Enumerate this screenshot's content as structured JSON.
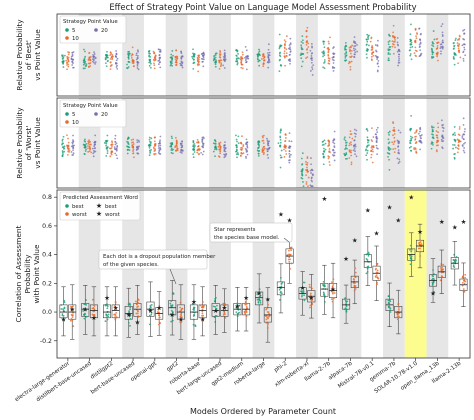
{
  "colors": {
    "best": "#1b9e77",
    "worst": "#e66a2c",
    "pv5": "#1b9e77",
    "pv10": "#e66a2c",
    "pv20": "#7570b3",
    "shade": "#e6e6e6",
    "highlight": "#fdfd8f",
    "star": "#c000c0",
    "base_star": "#7f7f7f"
  },
  "chart_data": [
    {
      "type": "scatter",
      "title": "Effect of Strategy Point Value on Language Model Assessment Probability",
      "ylabel": "Relative Probability\nof 'Best'\nvs Point Value",
      "legend": {
        "title": "Strategy Point Value",
        "entries": [
          "5",
          "10",
          "20"
        ],
        "placement": "top-left"
      },
      "categories": [
        "electra-large-generator",
        "distilbert-base-uncased",
        "distilgpt2",
        "bert-base-uncased",
        "openai-gpt",
        "gpt2",
        "roberta-base",
        "bert-large-uncased",
        "gpt2-medium",
        "roberta-large",
        "phi-2",
        "xlm-roberta-xl",
        "llama-2-7b",
        "alpaca-7b",
        "Mistral-7B-v0.1",
        "gemma-7b",
        "SOLAR-10.7B-v1.0",
        "open_llama_13b",
        "llama-2-13b"
      ],
      "series": [
        {
          "name": "5",
          "values": [
            0.45,
            0.44,
            0.47,
            0.46,
            0.46,
            0.46,
            0.47,
            0.45,
            0.46,
            0.48,
            0.52,
            0.55,
            0.52,
            0.55,
            0.63,
            0.58,
            0.65,
            0.57,
            0.56
          ]
        },
        {
          "name": "10",
          "values": [
            0.45,
            0.46,
            0.44,
            0.47,
            0.45,
            0.46,
            0.44,
            0.46,
            0.45,
            0.47,
            0.56,
            0.68,
            0.55,
            0.52,
            0.58,
            0.72,
            0.62,
            0.6,
            0.58
          ]
        },
        {
          "name": "20",
          "values": [
            0.46,
            0.46,
            0.46,
            0.44,
            0.46,
            0.45,
            0.46,
            0.46,
            0.47,
            0.48,
            0.5,
            0.46,
            0.48,
            0.56,
            0.52,
            0.54,
            0.62,
            0.66,
            0.64
          ]
        }
      ],
      "ylim": [
        0,
        1
      ],
      "grid": false
    },
    {
      "type": "scatter",
      "ylabel": "Relative Probability\nof 'Worst'\nvs Point Value",
      "legend": {
        "title": "Strategy Point Value",
        "entries": [
          "5",
          "10",
          "20"
        ],
        "placement": "top-left"
      },
      "categories": [
        "electra-large-generator",
        "distilbert-base-uncased",
        "distilgpt2",
        "bert-base-uncased",
        "openai-gpt",
        "gpt2",
        "roberta-base",
        "bert-large-uncased",
        "gpt2-medium",
        "roberta-large",
        "phi-2",
        "xlm-roberta-xl",
        "llama-2-7b",
        "alpaca-7b",
        "Mistral-7B-v0.1",
        "gemma-7b",
        "SOLAR-10.7B-v1.0",
        "open_llama_13b",
        "llama-2-13b"
      ],
      "series": [
        {
          "name": "5",
          "values": [
            0.46,
            0.45,
            0.46,
            0.47,
            0.46,
            0.45,
            0.46,
            0.46,
            0.45,
            0.46,
            0.5,
            0.18,
            0.46,
            0.44,
            0.48,
            0.4,
            0.56,
            0.54,
            0.52
          ]
        },
        {
          "name": "10",
          "values": [
            0.46,
            0.47,
            0.44,
            0.46,
            0.46,
            0.47,
            0.45,
            0.45,
            0.46,
            0.46,
            0.48,
            0.16,
            0.44,
            0.46,
            0.46,
            0.58,
            0.52,
            0.55,
            0.5
          ]
        },
        {
          "name": "20",
          "values": [
            0.45,
            0.46,
            0.46,
            0.45,
            0.46,
            0.46,
            0.47,
            0.46,
            0.46,
            0.47,
            0.46,
            0.15,
            0.44,
            0.5,
            0.54,
            0.44,
            0.58,
            0.58,
            0.55
          ]
        }
      ],
      "ylim": [
        0,
        1
      ],
      "grid": false
    },
    {
      "type": "box",
      "ylabel": "Correlation of Assessment\nProbability\nwith Point Value",
      "xlabel": "Models Ordered by Parameter Count",
      "ylim": [
        -0.32,
        0.85
      ],
      "yticks": [
        "-0.2",
        "0.0",
        "0.2",
        "0.4",
        "0.6",
        "0.8"
      ],
      "legend": {
        "title": "Predicted Assessment Word",
        "entries": [
          "best",
          "worst",
          "best",
          "worst"
        ],
        "placement": "top-left"
      },
      "annotations": [
        "Star represents the species base model.",
        "Each dot is a dropout population member of the given species."
      ],
      "categories": [
        "electra-large-generator",
        "distilbert-base-uncased",
        "distilgpt2",
        "bert-base-uncased",
        "openai-gpt",
        "gpt2",
        "roberta-base",
        "bert-large-uncased",
        "gpt2-medium",
        "roberta-large",
        "phi-2",
        "xlm-roberta-xl",
        "llama-2-7b",
        "alpaca-7b",
        "Mistral-7B-v0.1",
        "gemma-7b",
        "SOLAR-10.7B-v1.0",
        "open_llama_13b",
        "llama-2-13b"
      ],
      "highlight_category": "SOLAR-10.7B-v1.0",
      "series": [
        {
          "name": "best",
          "median": [
            0.0,
            0.02,
            0.0,
            -0.01,
            0.02,
            0.03,
            0.0,
            0.01,
            0.02,
            0.1,
            0.17,
            0.13,
            0.16,
            0.05,
            0.35,
            0.05,
            0.4,
            0.22,
            0.34
          ],
          "q1": [
            -0.04,
            -0.03,
            -0.04,
            -0.05,
            -0.03,
            -0.02,
            -0.05,
            -0.03,
            -0.02,
            0.05,
            0.12,
            0.09,
            0.11,
            0.02,
            0.31,
            0.01,
            0.36,
            0.18,
            0.3
          ],
          "q3": [
            0.05,
            0.06,
            0.05,
            0.04,
            0.07,
            0.08,
            0.05,
            0.06,
            0.06,
            0.14,
            0.21,
            0.17,
            0.2,
            0.09,
            0.4,
            0.09,
            0.44,
            0.26,
            0.38
          ],
          "star": [
            -0.05,
            0.02,
            0.1,
            -0.02,
            0.01,
            -0.02,
            0.07,
            0.01,
            0.04,
            0.13,
            0.68,
            0.17,
            0.79,
            0.37,
            0.71,
            0.73,
            0.8,
            0.13,
            0.59
          ]
        },
        {
          "name": "worst",
          "median": [
            0.0,
            0.01,
            0.01,
            0.02,
            -0.01,
            0.0,
            0.01,
            0.01,
            0.02,
            -0.02,
            0.39,
            0.11,
            0.15,
            0.21,
            0.27,
            0.0,
            0.46,
            0.28,
            0.19
          ],
          "q1": [
            -0.05,
            -0.04,
            -0.04,
            -0.03,
            -0.05,
            -0.05,
            -0.04,
            -0.03,
            -0.02,
            -0.07,
            0.34,
            0.07,
            0.1,
            0.17,
            0.22,
            -0.04,
            0.42,
            0.24,
            0.15
          ],
          "q3": [
            0.05,
            0.05,
            0.05,
            0.06,
            0.03,
            0.05,
            0.05,
            0.05,
            0.06,
            0.03,
            0.44,
            0.15,
            0.2,
            0.25,
            0.32,
            0.04,
            0.5,
            0.32,
            0.23
          ],
          "star": [
            0.02,
            -0.04,
            0.03,
            -0.07,
            0.03,
            -0.05,
            -0.05,
            0.03,
            0.1,
            0.09,
            0.64,
            0.1,
            0.16,
            0.5,
            0.55,
            0.64,
            0.56,
            0.63,
            0.63
          ]
        }
      ]
    }
  ]
}
